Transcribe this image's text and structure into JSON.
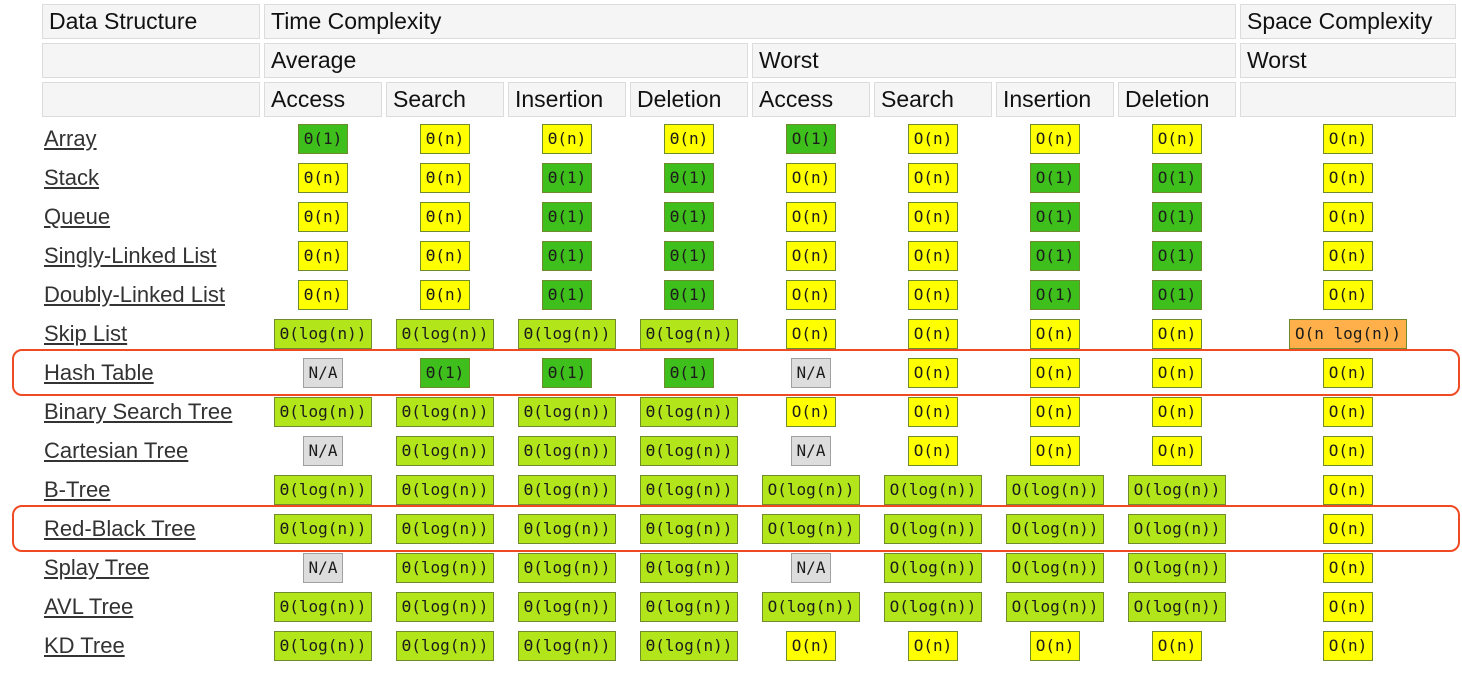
{
  "header": {
    "data_structure": "Data Structure",
    "time_complexity": "Time Complexity",
    "space_complexity": "Space Complexity",
    "average": "Average",
    "worst": "Worst",
    "space_worst": "Worst",
    "ops": [
      "Access",
      "Search",
      "Insertion",
      "Deletion",
      "Access",
      "Search",
      "Insertion",
      "Deletion"
    ]
  },
  "colors": {
    "good": "#3fbf1c",
    "fair": "#b3e61a",
    "bad": "#ffff00",
    "worse": "#ffb04a",
    "na": "#dddddd",
    "highlight": "#ef4a24"
  },
  "rows": [
    {
      "name": "Array",
      "cells": [
        [
          "Θ(1)",
          "good"
        ],
        [
          "Θ(n)",
          "bad"
        ],
        [
          "Θ(n)",
          "bad"
        ],
        [
          "Θ(n)",
          "bad"
        ],
        [
          "O(1)",
          "good"
        ],
        [
          "O(n)",
          "bad"
        ],
        [
          "O(n)",
          "bad"
        ],
        [
          "O(n)",
          "bad"
        ],
        [
          "O(n)",
          "bad"
        ]
      ]
    },
    {
      "name": "Stack",
      "cells": [
        [
          "Θ(n)",
          "bad"
        ],
        [
          "Θ(n)",
          "bad"
        ],
        [
          "Θ(1)",
          "good"
        ],
        [
          "Θ(1)",
          "good"
        ],
        [
          "O(n)",
          "bad"
        ],
        [
          "O(n)",
          "bad"
        ],
        [
          "O(1)",
          "good"
        ],
        [
          "O(1)",
          "good"
        ],
        [
          "O(n)",
          "bad"
        ]
      ]
    },
    {
      "name": "Queue",
      "cells": [
        [
          "Θ(n)",
          "bad"
        ],
        [
          "Θ(n)",
          "bad"
        ],
        [
          "Θ(1)",
          "good"
        ],
        [
          "Θ(1)",
          "good"
        ],
        [
          "O(n)",
          "bad"
        ],
        [
          "O(n)",
          "bad"
        ],
        [
          "O(1)",
          "good"
        ],
        [
          "O(1)",
          "good"
        ],
        [
          "O(n)",
          "bad"
        ]
      ]
    },
    {
      "name": "Singly-Linked List",
      "cells": [
        [
          "Θ(n)",
          "bad"
        ],
        [
          "Θ(n)",
          "bad"
        ],
        [
          "Θ(1)",
          "good"
        ],
        [
          "Θ(1)",
          "good"
        ],
        [
          "O(n)",
          "bad"
        ],
        [
          "O(n)",
          "bad"
        ],
        [
          "O(1)",
          "good"
        ],
        [
          "O(1)",
          "good"
        ],
        [
          "O(n)",
          "bad"
        ]
      ]
    },
    {
      "name": "Doubly-Linked List",
      "cells": [
        [
          "Θ(n)",
          "bad"
        ],
        [
          "Θ(n)",
          "bad"
        ],
        [
          "Θ(1)",
          "good"
        ],
        [
          "Θ(1)",
          "good"
        ],
        [
          "O(n)",
          "bad"
        ],
        [
          "O(n)",
          "bad"
        ],
        [
          "O(1)",
          "good"
        ],
        [
          "O(1)",
          "good"
        ],
        [
          "O(n)",
          "bad"
        ]
      ]
    },
    {
      "name": "Skip List",
      "cells": [
        [
          "Θ(log(n))",
          "fair"
        ],
        [
          "Θ(log(n))",
          "fair"
        ],
        [
          "Θ(log(n))",
          "fair"
        ],
        [
          "Θ(log(n))",
          "fair"
        ],
        [
          "O(n)",
          "bad"
        ],
        [
          "O(n)",
          "bad"
        ],
        [
          "O(n)",
          "bad"
        ],
        [
          "O(n)",
          "bad"
        ],
        [
          "O(n log(n))",
          "worse"
        ]
      ]
    },
    {
      "name": "Hash Table",
      "highlight": true,
      "cells": [
        [
          "N/A",
          "na"
        ],
        [
          "Θ(1)",
          "good"
        ],
        [
          "Θ(1)",
          "good"
        ],
        [
          "Θ(1)",
          "good"
        ],
        [
          "N/A",
          "na"
        ],
        [
          "O(n)",
          "bad"
        ],
        [
          "O(n)",
          "bad"
        ],
        [
          "O(n)",
          "bad"
        ],
        [
          "O(n)",
          "bad"
        ]
      ]
    },
    {
      "name": "Binary Search Tree",
      "cells": [
        [
          "Θ(log(n))",
          "fair"
        ],
        [
          "Θ(log(n))",
          "fair"
        ],
        [
          "Θ(log(n))",
          "fair"
        ],
        [
          "Θ(log(n))",
          "fair"
        ],
        [
          "O(n)",
          "bad"
        ],
        [
          "O(n)",
          "bad"
        ],
        [
          "O(n)",
          "bad"
        ],
        [
          "O(n)",
          "bad"
        ],
        [
          "O(n)",
          "bad"
        ]
      ]
    },
    {
      "name": "Cartesian Tree",
      "cells": [
        [
          "N/A",
          "na"
        ],
        [
          "Θ(log(n))",
          "fair"
        ],
        [
          "Θ(log(n))",
          "fair"
        ],
        [
          "Θ(log(n))",
          "fair"
        ],
        [
          "N/A",
          "na"
        ],
        [
          "O(n)",
          "bad"
        ],
        [
          "O(n)",
          "bad"
        ],
        [
          "O(n)",
          "bad"
        ],
        [
          "O(n)",
          "bad"
        ]
      ]
    },
    {
      "name": "B-Tree",
      "cells": [
        [
          "Θ(log(n))",
          "fair"
        ],
        [
          "Θ(log(n))",
          "fair"
        ],
        [
          "Θ(log(n))",
          "fair"
        ],
        [
          "Θ(log(n))",
          "fair"
        ],
        [
          "O(log(n))",
          "fair"
        ],
        [
          "O(log(n))",
          "fair"
        ],
        [
          "O(log(n))",
          "fair"
        ],
        [
          "O(log(n))",
          "fair"
        ],
        [
          "O(n)",
          "bad"
        ]
      ]
    },
    {
      "name": "Red-Black Tree",
      "highlight": true,
      "cells": [
        [
          "Θ(log(n))",
          "fair"
        ],
        [
          "Θ(log(n))",
          "fair"
        ],
        [
          "Θ(log(n))",
          "fair"
        ],
        [
          "Θ(log(n))",
          "fair"
        ],
        [
          "O(log(n))",
          "fair"
        ],
        [
          "O(log(n))",
          "fair"
        ],
        [
          "O(log(n))",
          "fair"
        ],
        [
          "O(log(n))",
          "fair"
        ],
        [
          "O(n)",
          "bad"
        ]
      ]
    },
    {
      "name": "Splay Tree",
      "cells": [
        [
          "N/A",
          "na"
        ],
        [
          "Θ(log(n))",
          "fair"
        ],
        [
          "Θ(log(n))",
          "fair"
        ],
        [
          "Θ(log(n))",
          "fair"
        ],
        [
          "N/A",
          "na"
        ],
        [
          "O(log(n))",
          "fair"
        ],
        [
          "O(log(n))",
          "fair"
        ],
        [
          "O(log(n))",
          "fair"
        ],
        [
          "O(n)",
          "bad"
        ]
      ]
    },
    {
      "name": "AVL Tree",
      "cells": [
        [
          "Θ(log(n))",
          "fair"
        ],
        [
          "Θ(log(n))",
          "fair"
        ],
        [
          "Θ(log(n))",
          "fair"
        ],
        [
          "Θ(log(n))",
          "fair"
        ],
        [
          "O(log(n))",
          "fair"
        ],
        [
          "O(log(n))",
          "fair"
        ],
        [
          "O(log(n))",
          "fair"
        ],
        [
          "O(log(n))",
          "fair"
        ],
        [
          "O(n)",
          "bad"
        ]
      ]
    },
    {
      "name": "KD Tree",
      "cells": [
        [
          "Θ(log(n))",
          "fair"
        ],
        [
          "Θ(log(n))",
          "fair"
        ],
        [
          "Θ(log(n))",
          "fair"
        ],
        [
          "Θ(log(n))",
          "fair"
        ],
        [
          "O(n)",
          "bad"
        ],
        [
          "O(n)",
          "bad"
        ],
        [
          "O(n)",
          "bad"
        ],
        [
          "O(n)",
          "bad"
        ],
        [
          "O(n)",
          "bad"
        ]
      ]
    }
  ]
}
